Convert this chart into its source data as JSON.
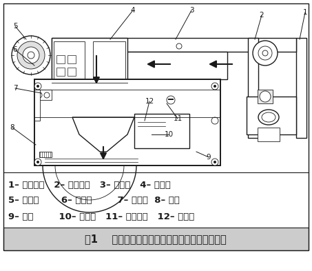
{
  "title": "图1    数字式、智能型定量包装秤机械结构示意图",
  "line1": "1– 传动部分   2– 给料装置   3– 电磁阀   4– 给料口",
  "line2": "5– 双螺旋       6– 截料门        7– 三联件  8– 秤斗",
  "line3": "9– 秤体        10– 钢丝绳   11– 限位螺栓   12– 传感器",
  "bg_color": "#ffffff",
  "text_color": "#1a1a1a",
  "title_bg": "#cccccc",
  "font_labels": 9.5,
  "font_title": 10.5
}
